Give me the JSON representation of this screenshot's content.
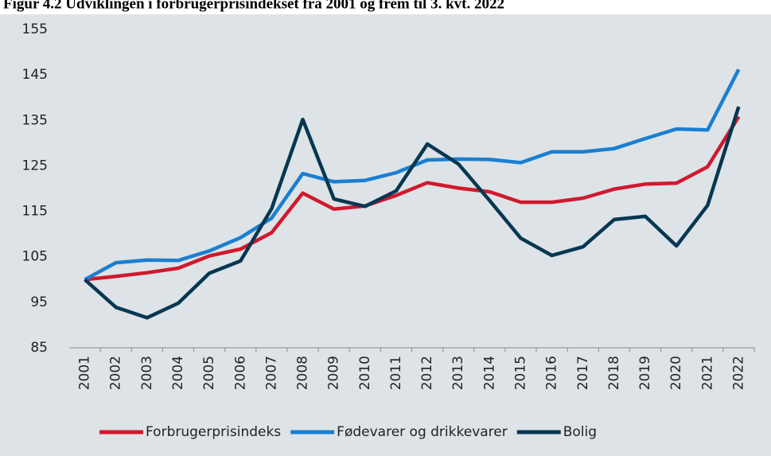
{
  "chart_data": {
    "type": "line",
    "title": "Figur 4.2 Udviklingen i forbrugerprisindekset fra 2001 og frem til 3. kvt. 2022",
    "categories": [
      "2001",
      "2002",
      "2003",
      "2004",
      "2005",
      "2006",
      "2007",
      "2008",
      "2009",
      "2010",
      "2011",
      "2012",
      "2013",
      "2014",
      "2015",
      "2016",
      "2017",
      "2018",
      "2019",
      "2020",
      "2021",
      "2022"
    ],
    "series": [
      {
        "name": "Forbrugerprisindeks",
        "color": "#d0192e",
        "values": [
          100,
          100.7,
          101.5,
          102.5,
          105.2,
          106.7,
          110.3,
          119.0,
          115.5,
          116.2,
          118.5,
          121.3,
          120.1,
          119.3,
          117.0,
          117.0,
          117.9,
          119.9,
          121.0,
          121.2,
          124.8,
          135.8
        ]
      },
      {
        "name": "Fødevarer og drikkevarer",
        "color": "#1a7fd1",
        "values": [
          100,
          103.7,
          104.3,
          104.2,
          106.3,
          109.2,
          113.5,
          123.3,
          121.5,
          121.8,
          123.5,
          126.3,
          126.5,
          126.4,
          125.7,
          128.1,
          128.1,
          128.8,
          131.0,
          133.1,
          132.9,
          146.2
        ]
      },
      {
        "name": "Bolig",
        "color": "#063752",
        "values": [
          100,
          93.9,
          91.6,
          94.8,
          101.4,
          104.1,
          115.6,
          135.2,
          117.7,
          116.1,
          119.5,
          129.8,
          125.4,
          117.4,
          109.1,
          105.3,
          107.2,
          113.2,
          113.9,
          107.4,
          116.3,
          138.0
        ]
      }
    ],
    "ylim": [
      85,
      155
    ],
    "yticks": [
      85,
      95,
      105,
      115,
      125,
      135,
      145,
      155
    ],
    "grid": false,
    "legend": "bottom"
  }
}
